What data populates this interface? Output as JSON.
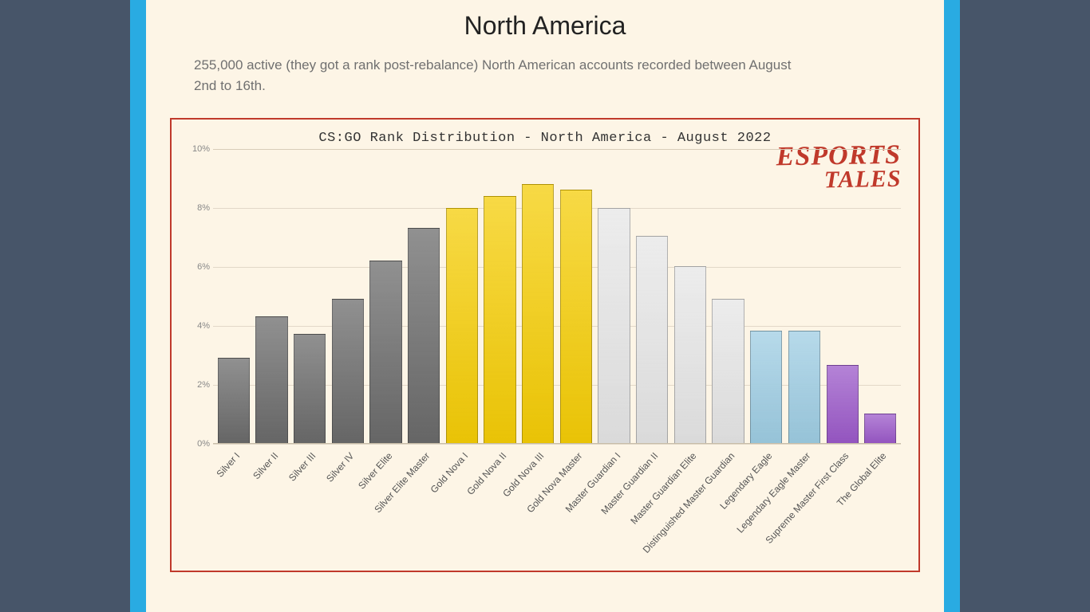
{
  "page": {
    "title": "North America",
    "subtitle": "255,000 active (they got a rank post-rebalance) North American accounts recorded between August 2nd to 16th."
  },
  "watermark": {
    "line1": "ESPORTS",
    "line2": "TALES"
  },
  "chart": {
    "type": "bar",
    "title": "CS:GO Rank Distribution - North America - August 2022",
    "background_color": "#fdf5e6",
    "border_color": "#c0392b",
    "grid_color": "#e2d8c8",
    "axis_color": "#c8bda8",
    "label_color": "#555",
    "tick_label_color": "#888",
    "ymin": 0,
    "ymax": 10,
    "ytick_step": 2,
    "ytick_suffix": "%",
    "bar_border": "rgba(0,0,0,0.25)",
    "categories": [
      "Silver I",
      "Silver II",
      "Silver III",
      "Silver IV",
      "Silver Elite",
      "Silver Elite Master",
      "Gold Nova I",
      "Gold Nova II",
      "Gold Nova III",
      "Gold Nova Master",
      "Master Guardian I",
      "Master Guardian II",
      "Master Guardian Elite",
      "Distinguished Master Guardian",
      "Legendary Eagle",
      "Legendary Eagle Master",
      "Supreme Master First Class",
      "The Global Elite"
    ],
    "values": [
      2.9,
      4.3,
      3.7,
      4.9,
      6.2,
      7.3,
      8.0,
      8.4,
      8.8,
      8.6,
      8.0,
      7.05,
      6.0,
      4.9,
      3.8,
      3.8,
      2.65,
      1.0
    ],
    "bar_colors": [
      "#6b6b6b",
      "#6b6b6b",
      "#6b6b6b",
      "#6b6b6b",
      "#6b6b6b",
      "#6b6b6b",
      "#f5cd06",
      "#f5cd06",
      "#f5cd06",
      "#f5cd06",
      "#e6e6e6",
      "#e6e6e6",
      "#e6e6e6",
      "#e6e6e6",
      "#9ecde3",
      "#9ecde3",
      "#9b59c9",
      "#9b59c9"
    ],
    "title_fontsize": 17,
    "xlabel_fontsize": 12,
    "ytick_fontsize": 11,
    "xlabel_rotation_deg": -48
  }
}
